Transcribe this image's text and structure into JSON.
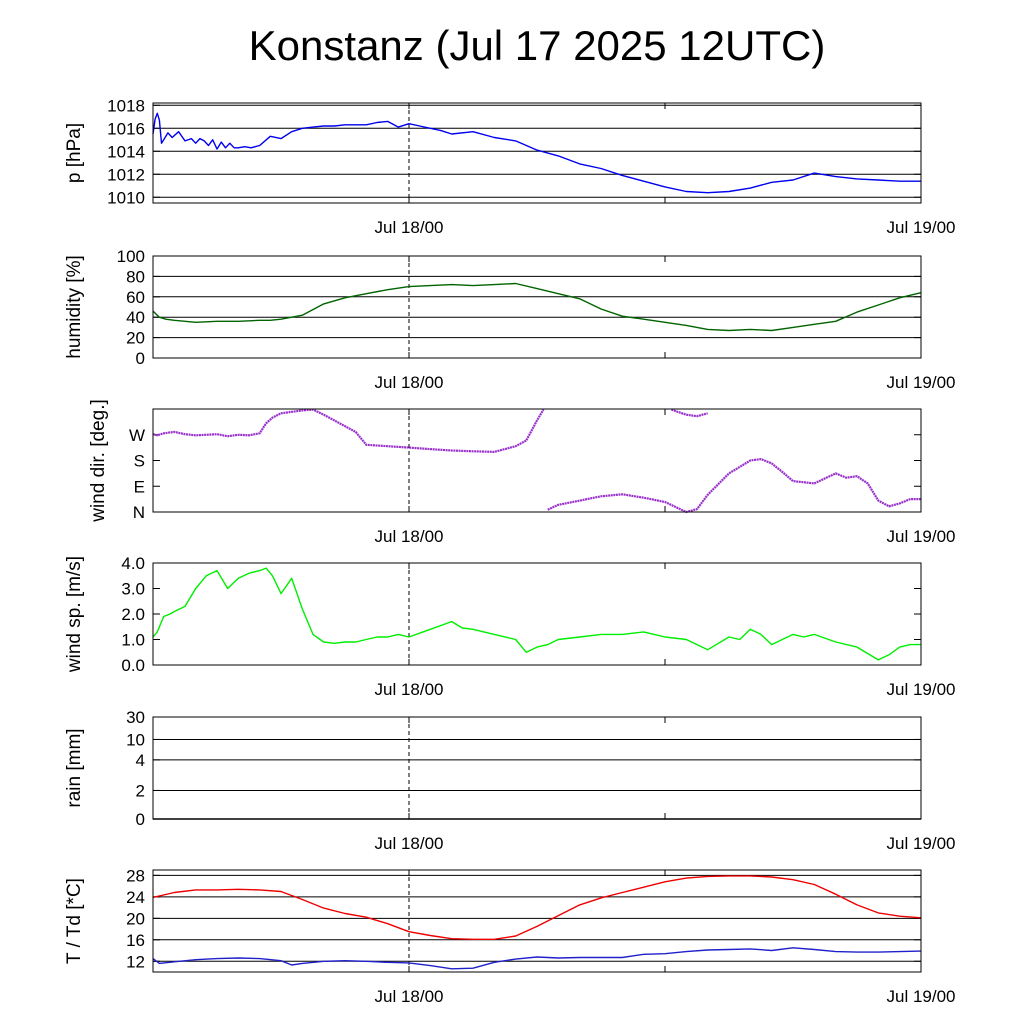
{
  "title": "Konstanz (Jul 17 2025 12UTC)",
  "colors": {
    "pressure": "#0000ee",
    "humidity": "#006400",
    "wind_dir": "#9932cc",
    "wind_speed": "#00ee00",
    "temperature": "#ee0000",
    "dewpoint": "#2020cc"
  },
  "chart_data": [
    {
      "type": "line",
      "ylabel": "p [hPa]",
      "ylim": [
        1009.5,
        1018.2
      ],
      "yticks": [
        "1010",
        "1012",
        "1014",
        "1016",
        "1018"
      ],
      "x_ticks": [
        "Jul 18/00",
        "Jul 19/00"
      ],
      "x_unit": "hours after Jul 17 12UTC",
      "xlim": [
        0,
        36
      ],
      "grid": true,
      "series": [
        {
          "x": [
            0,
            0.1,
            0.2,
            0.3,
            0.4,
            0.5,
            0.7,
            0.9,
            1.2,
            1.5,
            1.8,
            2.0,
            2.2,
            2.4,
            2.6,
            2.8,
            3.0,
            3.2,
            3.4,
            3.6,
            3.8,
            4.0,
            4.3,
            4.6,
            5.0,
            5.5,
            6.0,
            6.5,
            7.0,
            7.5,
            8.0,
            8.5,
            9.0,
            9.5,
            10.0,
            10.5,
            11.0,
            11.5,
            12.0,
            12.5,
            13.0,
            13.5,
            14.0,
            15.0,
            16.0,
            17.0,
            18.0,
            19.0,
            20.0,
            21.0,
            22.0,
            23.0,
            24.0,
            25.0,
            26.0,
            27.0,
            28.0,
            29.0,
            30.0,
            31.0,
            32.0,
            33.0,
            34.0,
            35.0,
            36.0
          ],
          "values": [
            1015.5,
            1016.8,
            1017.3,
            1016.7,
            1014.7,
            1015.0,
            1015.6,
            1015.2,
            1015.7,
            1014.9,
            1015.1,
            1014.7,
            1015.1,
            1014.9,
            1014.5,
            1015.0,
            1014.2,
            1014.8,
            1014.3,
            1014.7,
            1014.3,
            1014.3,
            1014.4,
            1014.3,
            1014.5,
            1015.3,
            1015.1,
            1015.7,
            1016.0,
            1016.1,
            1016.2,
            1016.2,
            1016.3,
            1016.3,
            1016.3,
            1016.5,
            1016.6,
            1016.1,
            1016.4,
            1016.2,
            1016.0,
            1015.8,
            1015.5,
            1015.7,
            1015.2,
            1014.9,
            1014.1,
            1013.6,
            1012.9,
            1012.5,
            1011.9,
            1011.4,
            1010.9,
            1010.5,
            1010.4,
            1010.5,
            1010.8,
            1011.3,
            1011.5,
            1012.1,
            1011.8,
            1011.6,
            1011.5,
            1011.4,
            1011.4
          ]
        }
      ]
    },
    {
      "type": "line",
      "ylabel": "humidity [%]",
      "ylim": [
        0,
        100
      ],
      "yticks": [
        "0",
        "20",
        "40",
        "60",
        "80",
        "100"
      ],
      "x_ticks": [
        "Jul 18/00",
        "Jul 19/00"
      ],
      "x_unit": "hours after Jul 17 12UTC",
      "xlim": [
        0,
        36
      ],
      "grid": true,
      "series": [
        {
          "x": [
            0,
            0.3,
            0.6,
            1.0,
            1.5,
            2.0,
            3.0,
            4.0,
            5.0,
            5.5,
            6.0,
            7.0,
            8.0,
            9.0,
            10.0,
            11.0,
            12.0,
            13.0,
            14.0,
            15.0,
            16.0,
            17.0,
            18.0,
            19.0,
            20.0,
            21.0,
            22.0,
            23.0,
            24.0,
            25.0,
            26.0,
            27.0,
            28.0,
            29.0,
            30.0,
            31.0,
            32.0,
            33.0,
            34.0,
            35.0,
            36.0
          ],
          "values": [
            46,
            40,
            38,
            37,
            36,
            35,
            36,
            36,
            37,
            37,
            38,
            42,
            53,
            59,
            63,
            67,
            70,
            71,
            72,
            71,
            72,
            73,
            68,
            63,
            58,
            48,
            41,
            38,
            35,
            32,
            28,
            27,
            28,
            27,
            30,
            33,
            36,
            45,
            52,
            59,
            64
          ]
        }
      ]
    },
    {
      "type": "scatter",
      "ylabel": "wind dir. [deg.]",
      "ylim": [
        0,
        360
      ],
      "yticks": [
        "N",
        "E",
        "S",
        "W"
      ],
      "x_ticks": [
        "Jul 18/00",
        "Jul 19/00"
      ],
      "x_unit": "hours after Jul 17 12UTC",
      "xlim": [
        0,
        36
      ],
      "grid": false,
      "series": [
        {
          "x": [
            0,
            0.2,
            0.5,
            1.0,
            1.5,
            2.0,
            2.5,
            3.0,
            3.5,
            4.0,
            4.5,
            5.0,
            5.3,
            5.6,
            6.0,
            7.0,
            7.5,
            8.0,
            8.5,
            9.0,
            9.5,
            10.0,
            11.0,
            12.0,
            13.0,
            14.0,
            15.0,
            16.0,
            17.0,
            17.5,
            18.0,
            18.3
          ],
          "values": [
            272,
            268,
            275,
            280,
            272,
            268,
            270,
            272,
            265,
            270,
            268,
            275,
            310,
            330,
            345,
            355,
            358,
            340,
            320,
            300,
            280,
            235,
            230,
            225,
            220,
            215,
            212,
            210,
            230,
            250,
            320,
            358
          ]
        },
        {
          "x": [
            24.3,
            24.6,
            25.0,
            25.5,
            26.0
          ],
          "values": [
            358,
            350,
            340,
            335,
            345
          ]
        },
        {
          "x": [
            18.5,
            19.0,
            20.0,
            21.0,
            22.0,
            23.0,
            24.0,
            25.0,
            25.5,
            26.0,
            27.0,
            28.0,
            28.5,
            29.0,
            29.5,
            30.0,
            31.0,
            32.0,
            32.5,
            33.0,
            33.5,
            34.0,
            34.5,
            35.0,
            35.5,
            36.0
          ],
          "values": [
            8,
            25,
            40,
            55,
            62,
            50,
            35,
            0,
            10,
            60,
            135,
            180,
            185,
            170,
            140,
            108,
            100,
            135,
            120,
            125,
            100,
            40,
            20,
            30,
            45,
            45
          ]
        }
      ]
    },
    {
      "type": "line",
      "ylabel": "wind sp. [m/s]",
      "ylim": [
        0,
        4
      ],
      "yticks": [
        "0.0",
        "1.0",
        "2.0",
        "3.0",
        "4.0"
      ],
      "x_ticks": [
        "Jul 18/00",
        "Jul 19/00"
      ],
      "x_unit": "hours after Jul 17 12UTC",
      "xlim": [
        0,
        36
      ],
      "grid": false,
      "series": [
        {
          "x": [
            0,
            0.2,
            0.5,
            0.8,
            1.0,
            1.5,
            2.0,
            2.5,
            3.0,
            3.5,
            4.0,
            4.5,
            5.0,
            5.3,
            5.6,
            6.0,
            6.5,
            7.0,
            7.5,
            8.0,
            8.5,
            9.0,
            9.5,
            10.0,
            10.5,
            11.0,
            11.5,
            12.0,
            13.0,
            14.0,
            14.5,
            15.0,
            16.0,
            17.0,
            17.5,
            18.0,
            18.5,
            19.0,
            20.0,
            21.0,
            22.0,
            23.0,
            24.0,
            25.0,
            26.0,
            27.0,
            27.5,
            28.0,
            28.5,
            29.0,
            30.0,
            30.5,
            31.0,
            32.0,
            33.0,
            34.0,
            34.5,
            35.0,
            35.5,
            36.0
          ],
          "values": [
            1.1,
            1.3,
            1.9,
            2.0,
            2.1,
            2.3,
            3.0,
            3.5,
            3.7,
            3.0,
            3.4,
            3.6,
            3.7,
            3.8,
            3.5,
            2.8,
            3.4,
            2.2,
            1.2,
            0.9,
            0.85,
            0.9,
            0.9,
            1.0,
            1.1,
            1.1,
            1.2,
            1.1,
            1.4,
            1.7,
            1.45,
            1.4,
            1.2,
            1.0,
            0.5,
            0.7,
            0.8,
            1.0,
            1.1,
            1.2,
            1.2,
            1.3,
            1.1,
            1.0,
            0.6,
            1.1,
            1.0,
            1.4,
            1.2,
            0.8,
            1.2,
            1.1,
            1.2,
            0.9,
            0.7,
            0.2,
            0.4,
            0.7,
            0.8,
            0.8
          ]
        }
      ]
    },
    {
      "type": "line",
      "ylabel": "rain [mm]",
      "ylim": [
        0,
        30
      ],
      "yticks": [
        "0",
        "2",
        "4",
        "10",
        "30"
      ],
      "x_ticks": [
        "Jul 18/00",
        "Jul 19/00"
      ],
      "x_unit": "hours after Jul 17 12UTC",
      "xlim": [
        0,
        36
      ],
      "grid": true,
      "series": [
        {
          "x": [
            0,
            36
          ],
          "values": [
            0,
            0
          ]
        }
      ]
    },
    {
      "type": "line",
      "ylabel": "T / Td [*C]",
      "ylim": [
        10,
        29
      ],
      "yticks": [
        "12",
        "16",
        "20",
        "24",
        "28"
      ],
      "x_ticks": [
        "Jul 18/00",
        "Jul 19/00"
      ],
      "x_unit": "hours after Jul 17 12UTC",
      "xlim": [
        0,
        36
      ],
      "grid": true,
      "series": [
        {
          "x": [
            0,
            1,
            2,
            3,
            4,
            5,
            6,
            7,
            8,
            9,
            10,
            11,
            12,
            13,
            14,
            15,
            16,
            17,
            18,
            19,
            20,
            21,
            22,
            23,
            24,
            25,
            26,
            27,
            28,
            29,
            30,
            31,
            32,
            33,
            34,
            35,
            36
          ],
          "values": [
            23.9,
            24.8,
            25.3,
            25.3,
            25.4,
            25.3,
            25.0,
            23.5,
            21.9,
            20.9,
            20.2,
            19.0,
            17.5,
            16.8,
            16.2,
            16.1,
            16.1,
            16.7,
            18.5,
            20.5,
            22.5,
            23.8,
            24.8,
            25.8,
            26.8,
            27.5,
            27.8,
            27.9,
            27.9,
            27.7,
            27.2,
            26.3,
            24.5,
            22.5,
            21.0,
            20.4,
            20.1
          ]
        },
        {
          "x": [
            0,
            0.3,
            1,
            2,
            3,
            4,
            5,
            6,
            6.5,
            7,
            8,
            9,
            10,
            11,
            12,
            13,
            14,
            15,
            16,
            17,
            18,
            19,
            20,
            21,
            22,
            23,
            24,
            25,
            26,
            27,
            28,
            29,
            30,
            31,
            32,
            33,
            34,
            35,
            36
          ],
          "values": [
            12.5,
            11.6,
            11.9,
            12.3,
            12.5,
            12.6,
            12.5,
            12.1,
            11.3,
            11.6,
            12.0,
            12.1,
            12.0,
            11.8,
            11.7,
            11.2,
            10.6,
            10.7,
            11.8,
            12.4,
            12.8,
            12.6,
            12.7,
            12.7,
            12.7,
            13.3,
            13.4,
            13.8,
            14.1,
            14.2,
            14.3,
            14.0,
            14.5,
            14.2,
            13.8,
            13.7,
            13.7,
            13.8,
            13.9
          ]
        }
      ]
    }
  ]
}
